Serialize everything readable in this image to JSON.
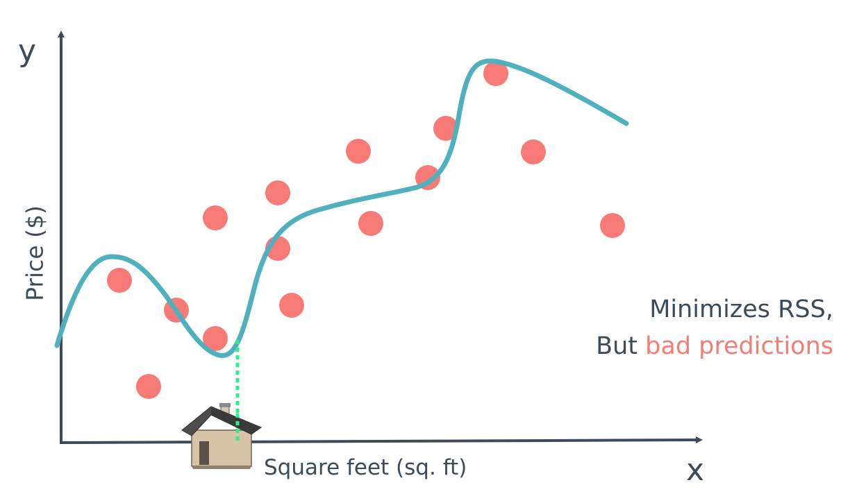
{
  "axes": {
    "y_letter": "y",
    "x_letter": "x",
    "y_label": "Price ($)",
    "x_label": "Square feet (sq. ft)"
  },
  "caption": {
    "line1": "Minimizes RSS,",
    "line2_prefix": "But ",
    "line2_highlight": "bad predictions"
  },
  "colors": {
    "axis": "#3d4b58",
    "points": "#f87a76",
    "curve": "#4fb1bd",
    "prediction_line": "#2ef08a",
    "highlight_text": "#f47c74"
  },
  "icons": {
    "house": "house-icon"
  }
}
